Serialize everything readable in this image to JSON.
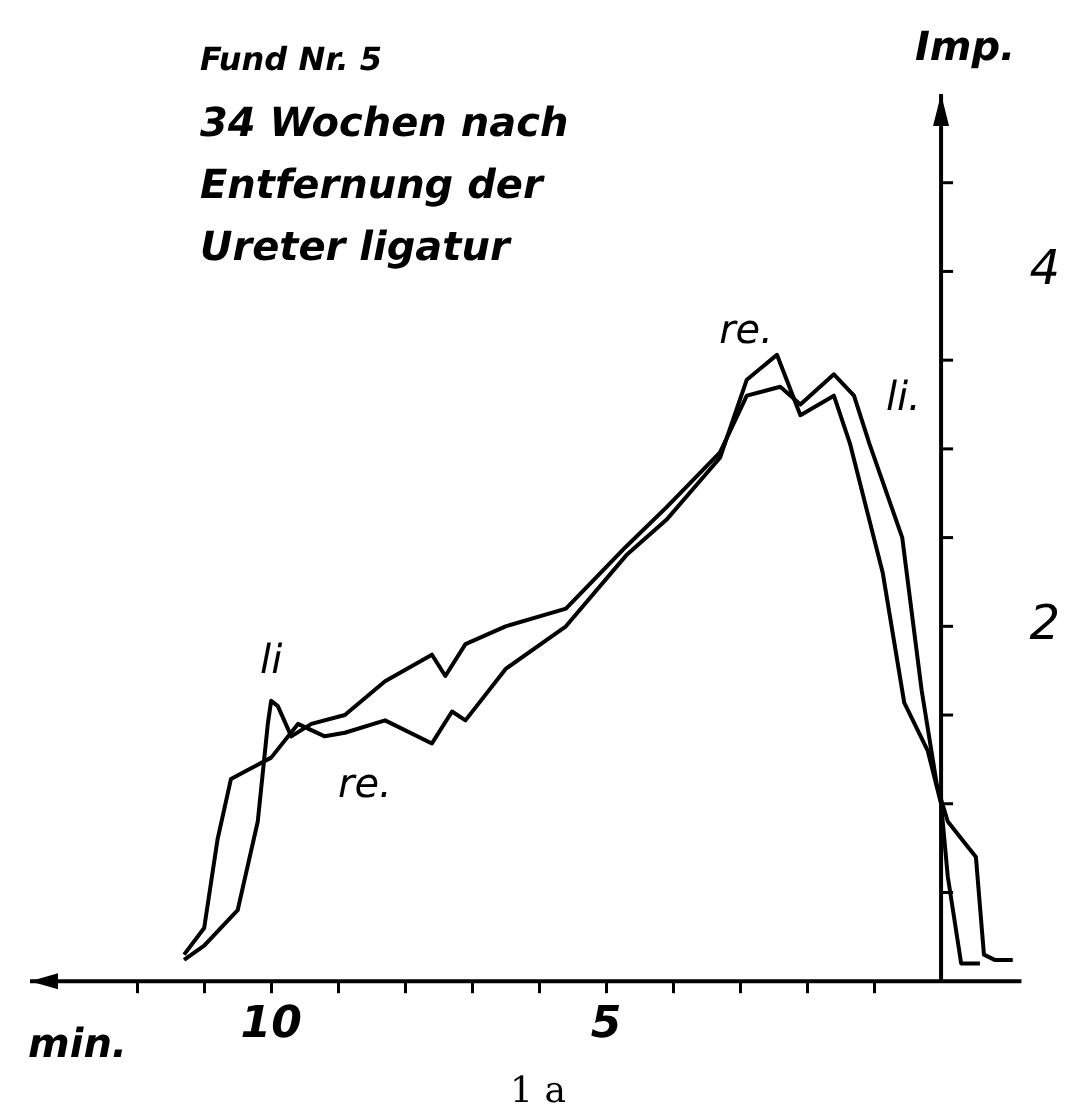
{
  "chart_data": {
    "type": "line",
    "title": "Fund Nr. 5",
    "subtitle": "34 Wochen nach Entfernung der Ureter ligatur",
    "xlabel": "min.",
    "ylabel": "Imp.",
    "xlim": [
      13.6,
      -1.2
    ],
    "ylim": [
      0,
      5
    ],
    "xticks": [
      {
        "value": 12,
        "label": null
      },
      {
        "value": 11,
        "label": null
      },
      10,
      {
        "value": 9,
        "label": null
      },
      {
        "value": 8,
        "label": null
      },
      {
        "value": 7,
        "label": null
      },
      {
        "value": 6,
        "label": null
      },
      5,
      {
        "value": 4,
        "label": null
      },
      {
        "value": 3,
        "label": null
      },
      {
        "value": 2,
        "label": null
      },
      {
        "value": 1,
        "label": null
      }
    ],
    "yticks": [
      {
        "value": 0.5,
        "label": null
      },
      {
        "value": 1,
        "label": null
      },
      {
        "value": 1.5,
        "label": null
      },
      2,
      {
        "value": 2.5,
        "label": null
      },
      {
        "value": 3,
        "label": null
      },
      {
        "value": 3.5,
        "label": null
      },
      4,
      {
        "value": 4.5,
        "label": null
      }
    ],
    "grid": false,
    "marker": "none",
    "line_style": "solid",
    "series": [
      {
        "name": "li.",
        "color": "#000000",
        "x": [
          11.3,
          11.0,
          10.5,
          10.2,
          10.05,
          10.0,
          9.9,
          9.7,
          9.4,
          8.9,
          8.3,
          7.6,
          7.4,
          7.1,
          6.5,
          5.6,
          4.7,
          4.1,
          3.3,
          2.9,
          2.4,
          2.1,
          1.6,
          1.3,
          1.07,
          0.58,
          0.29,
          0.06,
          -0.1,
          -0.33,
          -0.52,
          -0.64,
          -0.8,
          -1.07
        ],
        "values": [
          0.12,
          0.2,
          0.4,
          0.9,
          1.45,
          1.58,
          1.55,
          1.38,
          1.45,
          1.5,
          1.69,
          1.84,
          1.72,
          1.9,
          2.0,
          2.1,
          2.45,
          2.67,
          2.98,
          3.3,
          3.35,
          3.25,
          3.42,
          3.3,
          3.03,
          2.5,
          1.64,
          1.1,
          0.9,
          0.79,
          0.7,
          0.15,
          0.12,
          0.12
        ]
      },
      {
        "name": "re.",
        "color": "#000000",
        "x": [
          11.3,
          11.0,
          10.8,
          10.6,
          10.3,
          10.0,
          9.6,
          9.2,
          8.9,
          8.3,
          7.6,
          7.3,
          7.1,
          6.5,
          5.6,
          4.7,
          4.1,
          3.3,
          2.9,
          2.45,
          2.1,
          1.6,
          1.36,
          0.87,
          0.55,
          0.2,
          0.0,
          -0.1,
          -0.3,
          -0.58
        ],
        "values": [
          0.15,
          0.3,
          0.8,
          1.14,
          1.2,
          1.26,
          1.45,
          1.38,
          1.4,
          1.47,
          1.34,
          1.52,
          1.47,
          1.76,
          2.0,
          2.4,
          2.6,
          2.95,
          3.39,
          3.53,
          3.19,
          3.3,
          3.03,
          2.3,
          1.57,
          1.3,
          1.0,
          0.59,
          0.1,
          0.1
        ]
      }
    ],
    "annotations": [
      {
        "text": "li",
        "x": 10.0,
        "y": 1.58
      },
      {
        "text": "re.",
        "x": 8.9,
        "y": 1.4
      },
      "1 a"
    ]
  }
}
